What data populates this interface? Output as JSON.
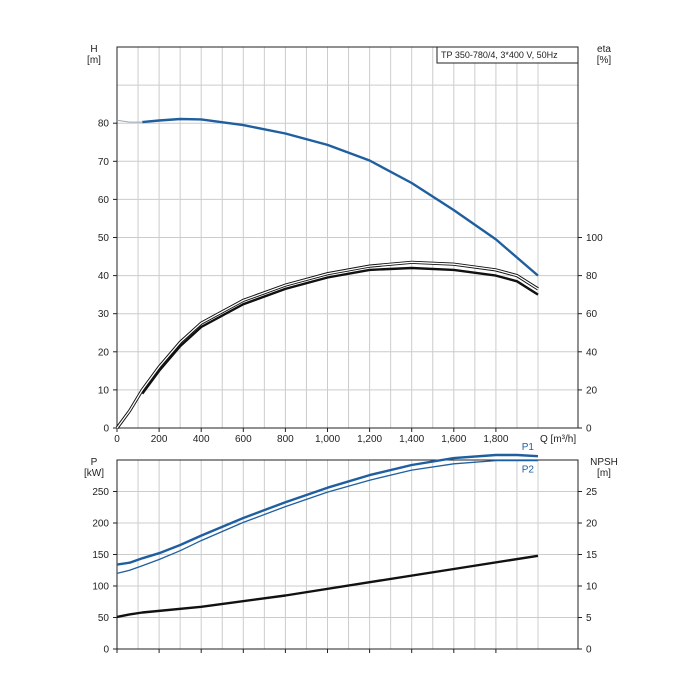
{
  "chart_data": [
    {
      "type": "line",
      "title": "TP 350-780/4, 3*400 V, 50Hz",
      "xlabel": "Q [m³/h]",
      "x_ticks": [
        "0",
        "200",
        "400",
        "600",
        "800",
        "1,000",
        "1,200",
        "1,400",
        "1,600",
        "1,800"
      ],
      "xlim": [
        0,
        2000
      ],
      "left_axis": {
        "label": "H",
        "unit": "[m]",
        "ticks": [
          0,
          10,
          20,
          30,
          40,
          50,
          60,
          70,
          80
        ],
        "ylim": [
          0,
          100
        ]
      },
      "right_axis": {
        "label": "eta",
        "unit": "[%]",
        "ticks": [
          0,
          20,
          40,
          60,
          80,
          100
        ],
        "ylim": [
          0,
          200
        ]
      },
      "grid": true,
      "series": [
        {
          "axis": "left",
          "color": "#1f5fa0",
          "style": "solid-bold",
          "x": [
            120,
            200,
            300,
            400,
            600,
            800,
            1000,
            1200,
            1400,
            1600,
            1800,
            2000
          ],
          "y": [
            80.3,
            80.7,
            81.1,
            81.0,
            79.5,
            77.3,
            74.3,
            70.2,
            64.3,
            57.2,
            49.5,
            40.0
          ]
        },
        {
          "axis": "left",
          "color": "#9aa8b8",
          "style": "thin",
          "x": [
            0,
            60,
            120
          ],
          "y": [
            80.8,
            80.3,
            80.3
          ]
        },
        {
          "axis": "right",
          "color": "#111111",
          "style": "solid-bold",
          "x": [
            120,
            200,
            300,
            400,
            600,
            800,
            1000,
            1200,
            1400,
            1600,
            1800,
            1900,
            2000
          ],
          "y": [
            18,
            30,
            43,
            53,
            65,
            73,
            79,
            83,
            84,
            83,
            80,
            77,
            70
          ]
        },
        {
          "axis": "right",
          "color": "#111111",
          "style": "double-thin",
          "x": [
            0,
            60,
            120,
            200,
            300,
            400,
            600,
            800,
            1000,
            1200,
            1400,
            1600,
            1800,
            1900,
            2000
          ],
          "y": [
            0,
            9,
            20,
            32,
            45,
            55,
            67,
            75,
            81,
            85,
            87,
            86,
            83,
            80,
            73
          ]
        }
      ]
    },
    {
      "type": "line",
      "xlim": [
        0,
        2000
      ],
      "left_axis": {
        "label": "P",
        "unit": "[kW]",
        "ticks": [
          0,
          50,
          100,
          150,
          200,
          250
        ],
        "ylim": [
          0,
          300
        ]
      },
      "right_axis": {
        "label": "NPSH",
        "unit": "[m]",
        "ticks": [
          0,
          5,
          10,
          15,
          20,
          25
        ],
        "ylim": [
          0,
          30
        ]
      },
      "grid": true,
      "series": [
        {
          "name": "P1",
          "axis": "left",
          "color": "#1f5fa0",
          "style": "solid-bold",
          "x": [
            0,
            60,
            120,
            200,
            300,
            400,
            600,
            800,
            1000,
            1200,
            1400,
            1600,
            1800,
            1900,
            2000
          ],
          "y": [
            134,
            137,
            144,
            152,
            165,
            180,
            208,
            233,
            256,
            276,
            292,
            303,
            308,
            308,
            306
          ]
        },
        {
          "name": "P2",
          "axis": "left",
          "color": "#1f5fa0",
          "style": "solid-thin",
          "x": [
            0,
            60,
            120,
            200,
            300,
            400,
            600,
            800,
            1000,
            1200,
            1400,
            1600,
            1800,
            1900,
            2000
          ],
          "y": [
            120,
            125,
            132,
            142,
            156,
            172,
            201,
            226,
            249,
            268,
            284,
            294,
            299,
            299,
            299
          ]
        },
        {
          "name": "",
          "axis": "right",
          "color": "#111111",
          "style": "solid-bold",
          "x": [
            0,
            60,
            120,
            400,
            800,
            1200,
            1600,
            2000
          ],
          "y": [
            5.1,
            5.5,
            5.8,
            6.7,
            8.5,
            10.6,
            12.7,
            14.8
          ]
        }
      ]
    }
  ]
}
